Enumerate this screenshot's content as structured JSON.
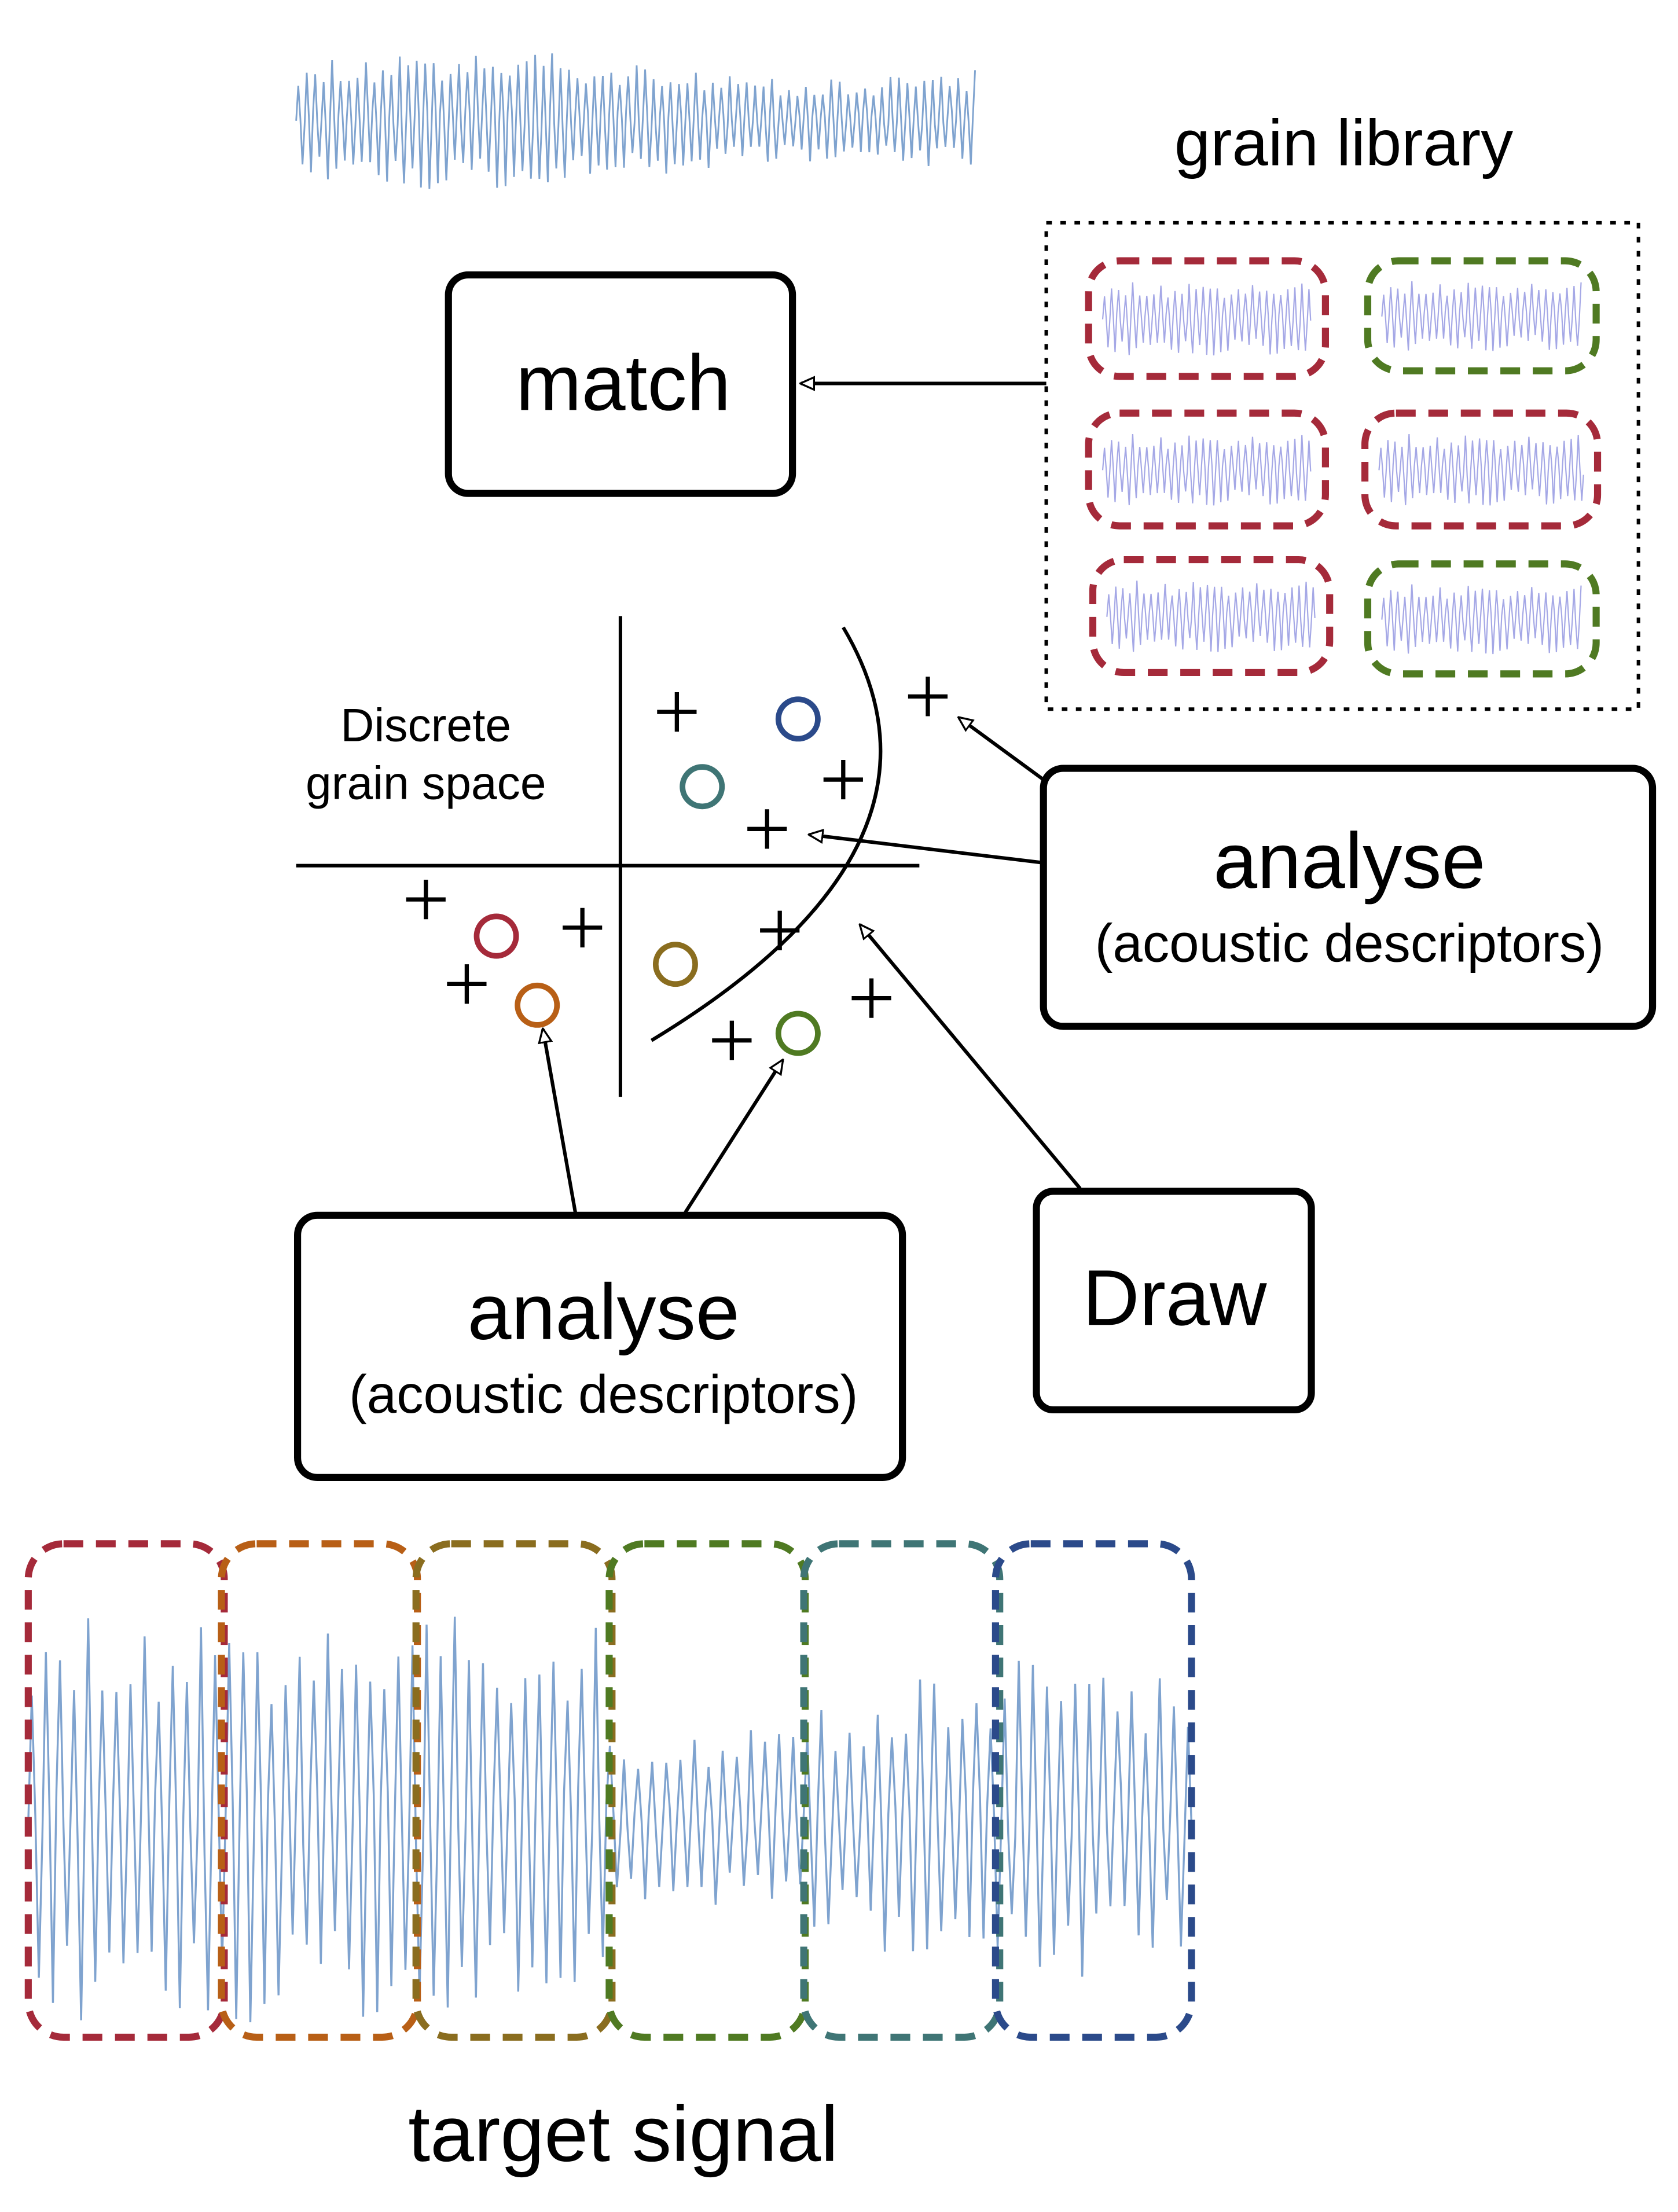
{
  "grain_library": {
    "title": "grain library"
  },
  "match": {
    "label": "match"
  },
  "grain_space": {
    "label_line1": "Discrete",
    "label_line2": "grain space"
  },
  "analyse_right": {
    "title": "analyse",
    "subtitle": "(acoustic descriptors)"
  },
  "analyse_bottom": {
    "title": "analyse",
    "subtitle": "(acoustic descriptors)"
  },
  "draw": {
    "label": "Draw"
  },
  "target_signal": {
    "title": "target signal"
  }
}
